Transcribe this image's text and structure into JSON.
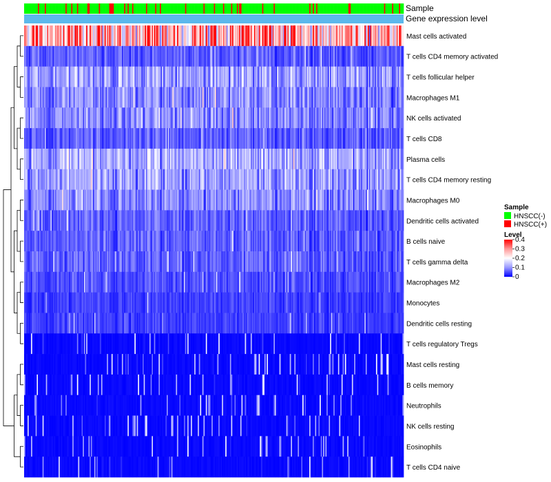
{
  "chart_data": {
    "type": "heatmap",
    "title": "",
    "n_samples": 330,
    "annotation_tracks": [
      "Sample",
      "Gene expression level"
    ],
    "sample_groups": [
      "HNSCC(-)",
      "HNSCC(+)"
    ],
    "sample_group_colors": {
      "HNSCC(-)": "#00ff00",
      "HNSCC(+)": "#ff0000"
    },
    "gene_expression_level_color": "#5cb8ec",
    "rows": [
      {
        "label": "Mast cells activated",
        "mean": 0.28
      },
      {
        "label": "T cells CD4 memory activated",
        "mean": 0.06
      },
      {
        "label": "T cells follicular helper",
        "mean": 0.11
      },
      {
        "label": "Macrophages M1",
        "mean": 0.09
      },
      {
        "label": "NK cells activated",
        "mean": 0.09
      },
      {
        "label": "T cells CD8",
        "mean": 0.06
      },
      {
        "label": "Plasma cells",
        "mean": 0.12
      },
      {
        "label": "T cells CD4 memory resting",
        "mean": 0.11
      },
      {
        "label": "Macrophages M0",
        "mean": 0.09
      },
      {
        "label": "Dendritic cells activated",
        "mean": 0.06
      },
      {
        "label": "B cells naive",
        "mean": 0.06
      },
      {
        "label": "T cells gamma delta",
        "mean": 0.06
      },
      {
        "label": "Macrophages M2",
        "mean": 0.05
      },
      {
        "label": "Monocytes",
        "mean": 0.04
      },
      {
        "label": "Dendritic cells resting",
        "mean": 0.04
      },
      {
        "label": "T cells regulatory  Tregs",
        "mean": 0.02
      },
      {
        "label": "Mast cells resting",
        "mean": 0.01
      },
      {
        "label": "B cells memory",
        "mean": 0.01
      },
      {
        "label": "Neutrophils",
        "mean": 0.015
      },
      {
        "label": "NK cells resting",
        "mean": 0.01
      },
      {
        "label": "Eosinophils",
        "mean": 0.005
      },
      {
        "label": "T cells CD4 naive",
        "mean": 0.01
      }
    ],
    "color_scale": {
      "min": 0,
      "max": 0.4,
      "stops": [
        {
          "value": 0,
          "color": "#0000ff"
        },
        {
          "value": 0.1,
          "color": "#9999ff"
        },
        {
          "value": 0.2,
          "color": "#ffffff"
        },
        {
          "value": 0.3,
          "color": "#ff9999"
        },
        {
          "value": 0.4,
          "color": "#ff0000"
        }
      ]
    },
    "legend": {
      "sample_title": "Sample",
      "level_title": "Level",
      "level_ticks": [
        "0.4",
        "0.3",
        "0.2",
        "0.1",
        "0"
      ],
      "placement": "right"
    }
  }
}
